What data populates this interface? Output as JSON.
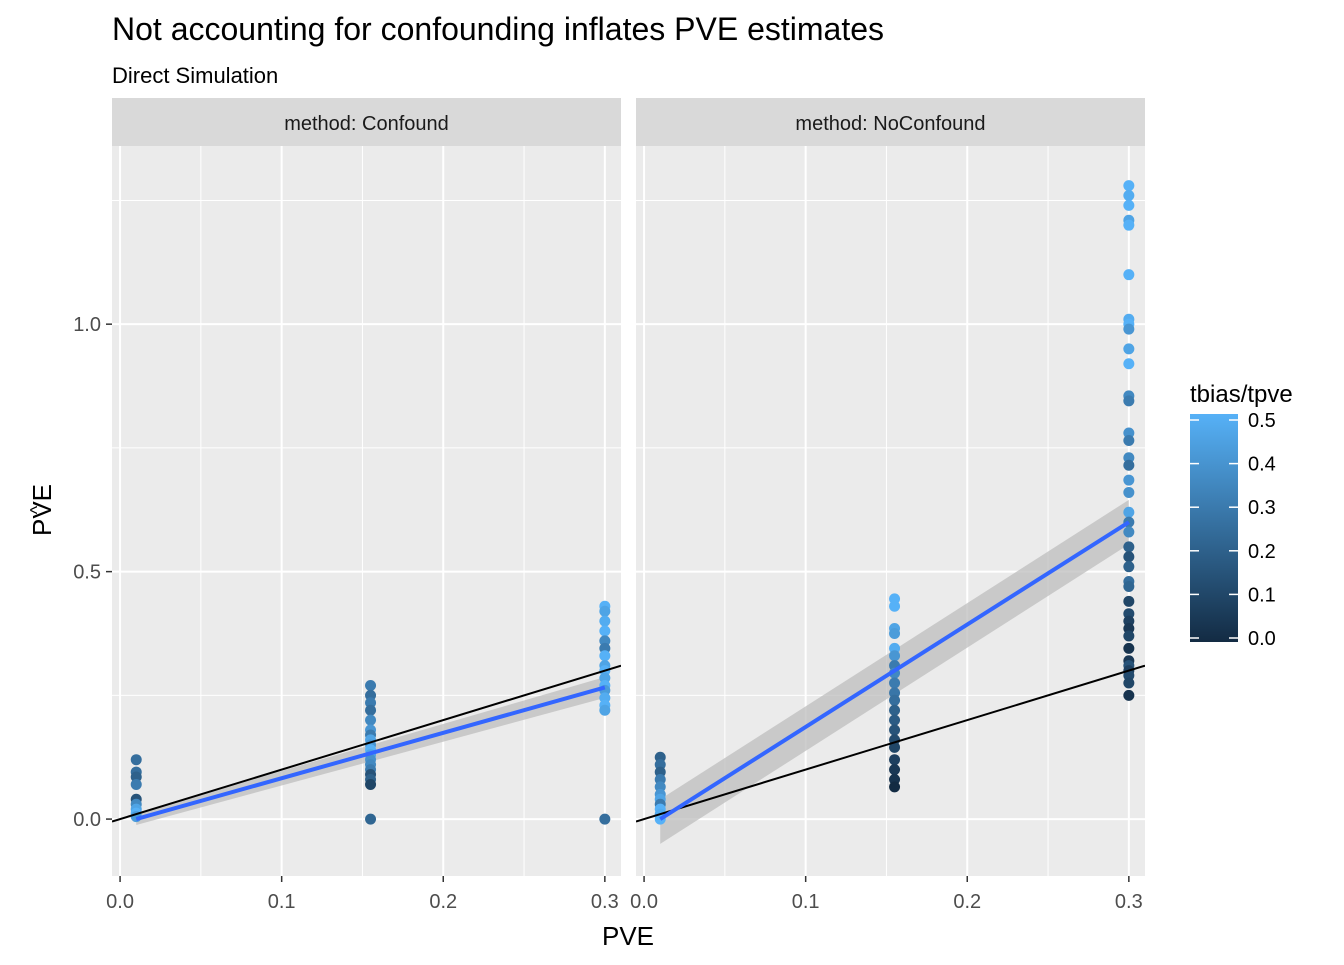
{
  "chart_data": {
    "type": "scatter",
    "title": "Not accounting for confounding inflates PVE estimates",
    "subtitle": "Direct Simulation",
    "xlabel": "PVE",
    "ylabel": "PVE",
    "ylabel_hat": "^",
    "xlim": [
      -0.005,
      0.31
    ],
    "ylim": [
      -0.115,
      1.36
    ],
    "x_ticks": [
      0.0,
      0.1,
      0.2,
      0.3
    ],
    "x_tick_labels": [
      "0.0",
      "0.1",
      "0.2",
      "0.3"
    ],
    "y_ticks": [
      0.0,
      0.5,
      1.0
    ],
    "y_tick_labels": [
      "0.0",
      "0.5",
      "1.0"
    ],
    "grid": true,
    "reference_line": {
      "slope": 1,
      "intercept": 0,
      "color": "#000000"
    },
    "smooth_color": "#3366FF",
    "ribbon_color": "#bdbdbd",
    "legend": {
      "title": "tbias/tpve",
      "position": "right",
      "min": 0.0,
      "max": 0.5,
      "ticks": [
        "0.0",
        "0.1",
        "0.2",
        "0.3",
        "0.4",
        "0.5"
      ],
      "low_color": "#132B43",
      "high_color": "#56B1F7"
    },
    "facets": [
      {
        "strip": "method: Confound",
        "smooth": {
          "x": [
            0.01,
            0.3
          ],
          "y": [
            0.0,
            0.266
          ],
          "ribbon_lo": [
            -0.012,
            0.245
          ],
          "ribbon_hi": [
            0.012,
            0.287
          ]
        },
        "points": [
          {
            "x": 0.01,
            "y": 0.12,
            "c": 0.25
          },
          {
            "x": 0.01,
            "y": 0.095,
            "c": 0.25
          },
          {
            "x": 0.01,
            "y": 0.085,
            "c": 0.2
          },
          {
            "x": 0.01,
            "y": 0.07,
            "c": 0.3
          },
          {
            "x": 0.01,
            "y": 0.04,
            "c": 0.15
          },
          {
            "x": 0.01,
            "y": 0.03,
            "c": 0.35
          },
          {
            "x": 0.01,
            "y": 0.02,
            "c": 0.45
          },
          {
            "x": 0.01,
            "y": 0.012,
            "c": 0.5
          },
          {
            "x": 0.01,
            "y": 0.005,
            "c": 0.42
          },
          {
            "x": 0.155,
            "y": 0.27,
            "c": 0.3
          },
          {
            "x": 0.155,
            "y": 0.25,
            "c": 0.25
          },
          {
            "x": 0.155,
            "y": 0.235,
            "c": 0.3
          },
          {
            "x": 0.155,
            "y": 0.22,
            "c": 0.25
          },
          {
            "x": 0.155,
            "y": 0.2,
            "c": 0.35
          },
          {
            "x": 0.155,
            "y": 0.18,
            "c": 0.4
          },
          {
            "x": 0.155,
            "y": 0.17,
            "c": 0.3
          },
          {
            "x": 0.155,
            "y": 0.16,
            "c": 0.45
          },
          {
            "x": 0.155,
            "y": 0.15,
            "c": 0.4
          },
          {
            "x": 0.155,
            "y": 0.14,
            "c": 0.5
          },
          {
            "x": 0.155,
            "y": 0.13,
            "c": 0.45
          },
          {
            "x": 0.155,
            "y": 0.12,
            "c": 0.38
          },
          {
            "x": 0.155,
            "y": 0.11,
            "c": 0.35
          },
          {
            "x": 0.155,
            "y": 0.1,
            "c": 0.3
          },
          {
            "x": 0.155,
            "y": 0.09,
            "c": 0.15
          },
          {
            "x": 0.155,
            "y": 0.08,
            "c": 0.2
          },
          {
            "x": 0.155,
            "y": 0.07,
            "c": 0.1
          },
          {
            "x": 0.155,
            "y": 0.0,
            "c": 0.22
          },
          {
            "x": 0.3,
            "y": 0.43,
            "c": 0.5
          },
          {
            "x": 0.3,
            "y": 0.42,
            "c": 0.45
          },
          {
            "x": 0.3,
            "y": 0.4,
            "c": 0.48
          },
          {
            "x": 0.3,
            "y": 0.38,
            "c": 0.5
          },
          {
            "x": 0.3,
            "y": 0.36,
            "c": 0.35
          },
          {
            "x": 0.3,
            "y": 0.345,
            "c": 0.3
          },
          {
            "x": 0.3,
            "y": 0.33,
            "c": 0.5
          },
          {
            "x": 0.3,
            "y": 0.31,
            "c": 0.45
          },
          {
            "x": 0.3,
            "y": 0.3,
            "c": 0.5
          },
          {
            "x": 0.3,
            "y": 0.285,
            "c": 0.45
          },
          {
            "x": 0.3,
            "y": 0.27,
            "c": 0.5
          },
          {
            "x": 0.3,
            "y": 0.26,
            "c": 0.42
          },
          {
            "x": 0.3,
            "y": 0.245,
            "c": 0.48
          },
          {
            "x": 0.3,
            "y": 0.23,
            "c": 0.5
          },
          {
            "x": 0.3,
            "y": 0.22,
            "c": 0.45
          },
          {
            "x": 0.3,
            "y": 0.0,
            "c": 0.25
          }
        ]
      },
      {
        "strip": "method: NoConfound",
        "smooth": {
          "x": [
            0.01,
            0.3
          ],
          "y": [
            0.0,
            0.6
          ],
          "ribbon_lo": [
            -0.05,
            0.555
          ],
          "ribbon_hi": [
            0.04,
            0.645
          ]
        },
        "points": [
          {
            "x": 0.01,
            "y": 0.125,
            "c": 0.2
          },
          {
            "x": 0.01,
            "y": 0.11,
            "c": 0.25
          },
          {
            "x": 0.01,
            "y": 0.095,
            "c": 0.2
          },
          {
            "x": 0.01,
            "y": 0.08,
            "c": 0.3
          },
          {
            "x": 0.01,
            "y": 0.065,
            "c": 0.35
          },
          {
            "x": 0.01,
            "y": 0.05,
            "c": 0.4
          },
          {
            "x": 0.01,
            "y": 0.04,
            "c": 0.45
          },
          {
            "x": 0.01,
            "y": 0.03,
            "c": 0.3
          },
          {
            "x": 0.01,
            "y": 0.02,
            "c": 0.5
          },
          {
            "x": 0.01,
            "y": 0.01,
            "c": 0.48
          },
          {
            "x": 0.01,
            "y": 0.0,
            "c": 0.5
          },
          {
            "x": 0.155,
            "y": 0.445,
            "c": 0.5
          },
          {
            "x": 0.155,
            "y": 0.43,
            "c": 0.5
          },
          {
            "x": 0.155,
            "y": 0.385,
            "c": 0.45
          },
          {
            "x": 0.155,
            "y": 0.375,
            "c": 0.42
          },
          {
            "x": 0.155,
            "y": 0.345,
            "c": 0.48
          },
          {
            "x": 0.155,
            "y": 0.33,
            "c": 0.4
          },
          {
            "x": 0.155,
            "y": 0.31,
            "c": 0.3
          },
          {
            "x": 0.155,
            "y": 0.295,
            "c": 0.35
          },
          {
            "x": 0.155,
            "y": 0.275,
            "c": 0.3
          },
          {
            "x": 0.155,
            "y": 0.255,
            "c": 0.28
          },
          {
            "x": 0.155,
            "y": 0.24,
            "c": 0.25
          },
          {
            "x": 0.155,
            "y": 0.22,
            "c": 0.2
          },
          {
            "x": 0.155,
            "y": 0.2,
            "c": 0.18
          },
          {
            "x": 0.155,
            "y": 0.18,
            "c": 0.15
          },
          {
            "x": 0.155,
            "y": 0.16,
            "c": 0.12
          },
          {
            "x": 0.155,
            "y": 0.145,
            "c": 0.1
          },
          {
            "x": 0.155,
            "y": 0.12,
            "c": 0.08
          },
          {
            "x": 0.155,
            "y": 0.1,
            "c": 0.05
          },
          {
            "x": 0.155,
            "y": 0.08,
            "c": 0.03
          },
          {
            "x": 0.155,
            "y": 0.065,
            "c": 0.0
          },
          {
            "x": 0.3,
            "y": 1.28,
            "c": 0.5
          },
          {
            "x": 0.3,
            "y": 1.26,
            "c": 0.48
          },
          {
            "x": 0.3,
            "y": 1.24,
            "c": 0.5
          },
          {
            "x": 0.3,
            "y": 1.21,
            "c": 0.45
          },
          {
            "x": 0.3,
            "y": 1.2,
            "c": 0.5
          },
          {
            "x": 0.3,
            "y": 1.1,
            "c": 0.5
          },
          {
            "x": 0.3,
            "y": 1.01,
            "c": 0.48
          },
          {
            "x": 0.3,
            "y": 1.0,
            "c": 0.5
          },
          {
            "x": 0.3,
            "y": 0.99,
            "c": 0.4
          },
          {
            "x": 0.3,
            "y": 0.95,
            "c": 0.45
          },
          {
            "x": 0.3,
            "y": 0.92,
            "c": 0.5
          },
          {
            "x": 0.3,
            "y": 0.855,
            "c": 0.35
          },
          {
            "x": 0.3,
            "y": 0.845,
            "c": 0.3
          },
          {
            "x": 0.3,
            "y": 0.78,
            "c": 0.38
          },
          {
            "x": 0.3,
            "y": 0.765,
            "c": 0.3
          },
          {
            "x": 0.3,
            "y": 0.73,
            "c": 0.35
          },
          {
            "x": 0.3,
            "y": 0.715,
            "c": 0.25
          },
          {
            "x": 0.3,
            "y": 0.685,
            "c": 0.4
          },
          {
            "x": 0.3,
            "y": 0.66,
            "c": 0.38
          },
          {
            "x": 0.3,
            "y": 0.62,
            "c": 0.45
          },
          {
            "x": 0.3,
            "y": 0.6,
            "c": 0.3
          },
          {
            "x": 0.3,
            "y": 0.58,
            "c": 0.35
          },
          {
            "x": 0.3,
            "y": 0.55,
            "c": 0.2
          },
          {
            "x": 0.3,
            "y": 0.53,
            "c": 0.15
          },
          {
            "x": 0.3,
            "y": 0.51,
            "c": 0.2
          },
          {
            "x": 0.3,
            "y": 0.48,
            "c": 0.25
          },
          {
            "x": 0.3,
            "y": 0.47,
            "c": 0.22
          },
          {
            "x": 0.3,
            "y": 0.44,
            "c": 0.1
          },
          {
            "x": 0.3,
            "y": 0.415,
            "c": 0.12
          },
          {
            "x": 0.3,
            "y": 0.4,
            "c": 0.08
          },
          {
            "x": 0.3,
            "y": 0.385,
            "c": 0.05
          },
          {
            "x": 0.3,
            "y": 0.37,
            "c": 0.1
          },
          {
            "x": 0.3,
            "y": 0.345,
            "c": 0.03
          },
          {
            "x": 0.3,
            "y": 0.32,
            "c": 0.05
          },
          {
            "x": 0.3,
            "y": 0.31,
            "c": 0.15
          },
          {
            "x": 0.3,
            "y": 0.3,
            "c": 0.08
          },
          {
            "x": 0.3,
            "y": 0.29,
            "c": 0.12
          },
          {
            "x": 0.3,
            "y": 0.275,
            "c": 0.1
          },
          {
            "x": 0.3,
            "y": 0.25,
            "c": 0.03
          }
        ]
      }
    ]
  }
}
